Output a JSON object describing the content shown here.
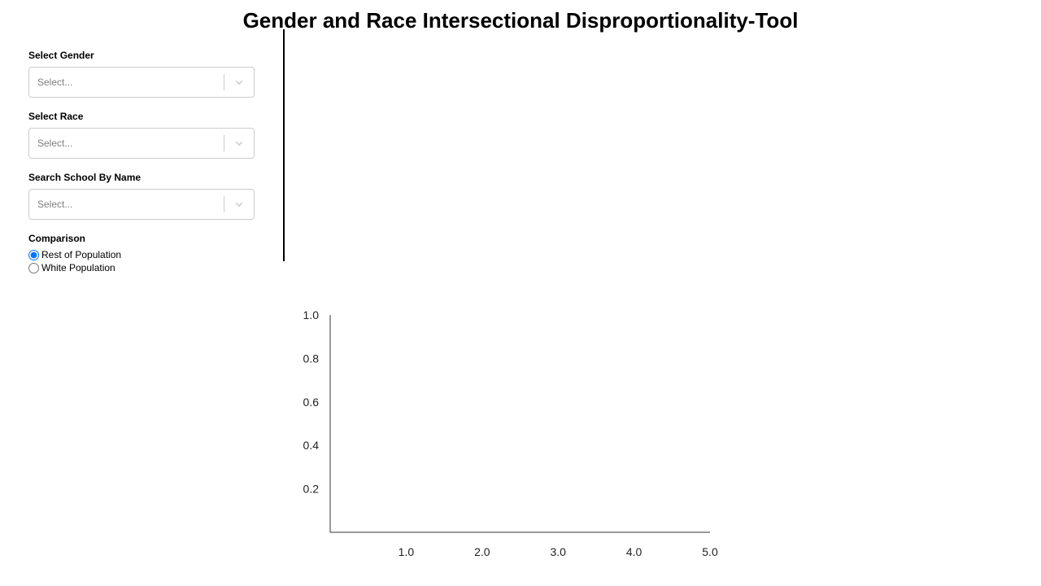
{
  "page": {
    "title": "Gender and Race Intersectional Disproportionality-Tool"
  },
  "filters": {
    "gender": {
      "label": "Select Gender",
      "placeholder": "Select..."
    },
    "race": {
      "label": "Select Race",
      "placeholder": "Select..."
    },
    "school": {
      "label": "Search School By Name",
      "placeholder": "Select..."
    }
  },
  "comparison": {
    "label": "Comparison",
    "options": [
      {
        "label": "Rest of Population",
        "selected": true
      },
      {
        "label": "White Population",
        "selected": false
      }
    ]
  },
  "icons": {
    "dropdown": "chevron-down-icon"
  },
  "colors": {
    "select_border": "#cccccc",
    "placeholder": "#808080",
    "radio_accent": "#0075ff"
  },
  "chart_data": {
    "type": "scatter",
    "title": "",
    "xlabel": "",
    "ylabel": "",
    "xlim": [
      0,
      5
    ],
    "ylim": [
      0,
      1
    ],
    "x_ticks": [
      {
        "value": 1,
        "label": "1.0"
      },
      {
        "value": 2,
        "label": "2.0"
      },
      {
        "value": 3,
        "label": "3.0"
      },
      {
        "value": 4,
        "label": "4.0"
      },
      {
        "value": 5,
        "label": "5.0"
      }
    ],
    "y_ticks": [
      {
        "value": 0.2,
        "label": "0.2"
      },
      {
        "value": 0.4,
        "label": "0.4"
      },
      {
        "value": 0.6,
        "label": "0.6"
      },
      {
        "value": 0.8,
        "label": "0.8"
      },
      {
        "value": 1.0,
        "label": "1.0"
      }
    ],
    "series": [],
    "grid": false
  }
}
